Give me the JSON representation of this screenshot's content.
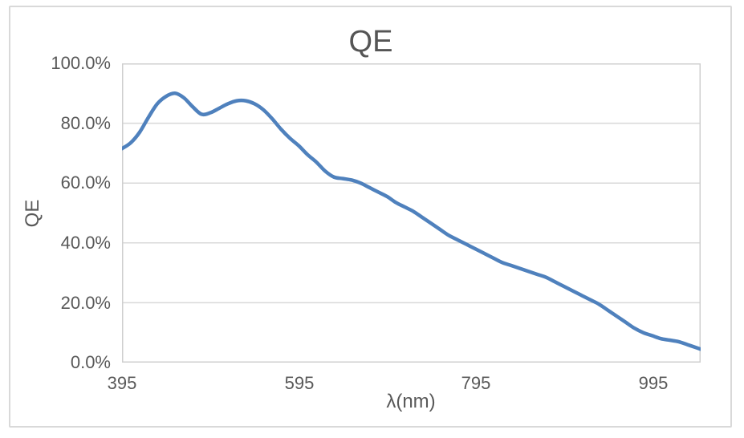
{
  "chart": {
    "title": "QE",
    "y_axis": {
      "title": "QE",
      "tick_labels": [
        "100.0%",
        "80.0%",
        "60.0%",
        "40.0%",
        "20.0%",
        "0.0%"
      ]
    },
    "x_axis": {
      "title": "λ(nm)",
      "tick_labels": [
        "395",
        "595",
        "795",
        "995"
      ],
      "tick_values": [
        395,
        595,
        795,
        995
      ]
    },
    "colors": {
      "line": "#4F81BD",
      "grid": "#D9D9D9",
      "plot_border": "#CFCFCF",
      "frame_border": "#D9D9D9",
      "text": "#595959"
    }
  },
  "chart_data": {
    "type": "line",
    "title": "QE",
    "xlabel": "λ(nm)",
    "ylabel": "QE",
    "series_name": "QE",
    "x": [
      395,
      405,
      415,
      425,
      435,
      445,
      455,
      465,
      475,
      485,
      495,
      505,
      515,
      525,
      535,
      545,
      555,
      565,
      575,
      585,
      595,
      605,
      615,
      625,
      635,
      645,
      655,
      665,
      675,
      685,
      695,
      705,
      715,
      725,
      735,
      745,
      755,
      765,
      775,
      785,
      795,
      805,
      815,
      825,
      835,
      845,
      855,
      865,
      875,
      885,
      895,
      905,
      915,
      925,
      935,
      945,
      955,
      965,
      975,
      985,
      995,
      1005,
      1015,
      1025,
      1035,
      1045,
      1050
    ],
    "y_percent": [
      71.5,
      73.5,
      77,
      82,
      86.5,
      89,
      90,
      88.5,
      85.5,
      83,
      83.5,
      85,
      86.5,
      87.5,
      87.5,
      86.5,
      84.5,
      81.5,
      78,
      75,
      72.5,
      69.5,
      67,
      64,
      62,
      61.5,
      61,
      60,
      58.5,
      57,
      55.5,
      53.5,
      52,
      50.5,
      48.5,
      46.5,
      44.5,
      42.5,
      41,
      39.5,
      38,
      36.5,
      35,
      33.5,
      32.5,
      31.5,
      30.5,
      29.5,
      28.5,
      27,
      25.5,
      24,
      22.5,
      21,
      19.5,
      17.5,
      15.5,
      13.5,
      11.5,
      10,
      9,
      8,
      7.5,
      7,
      6,
      5,
      4.5
    ],
    "xlim": [
      395,
      1050
    ],
    "ylim": [
      0,
      100
    ],
    "y_tick_step": 20,
    "y_tick_format": "percent_one_decimal",
    "grid": "horizontal",
    "legend": "none",
    "line_smooth": true
  }
}
